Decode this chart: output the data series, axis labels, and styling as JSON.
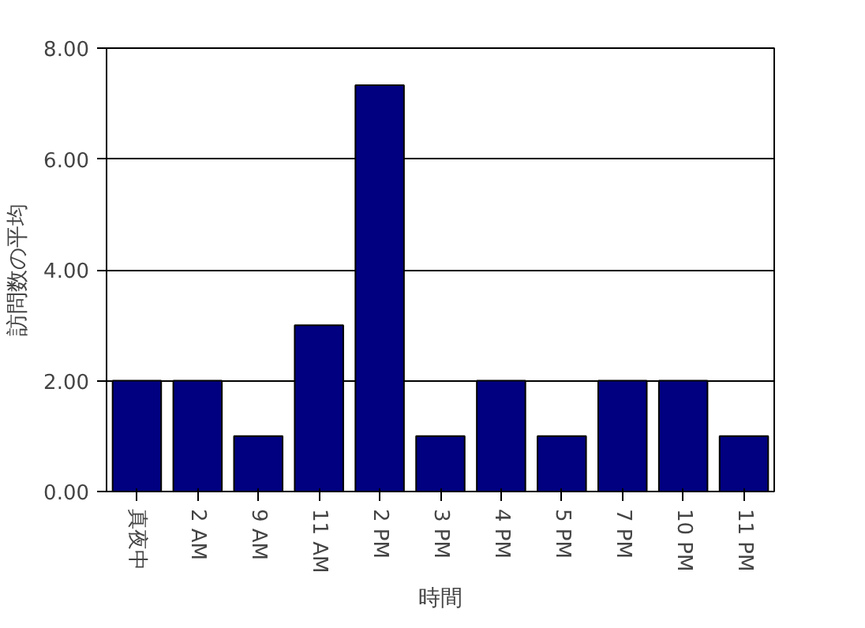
{
  "chart_data": {
    "type": "bar",
    "xlabel": "時間",
    "ylabel": "訪問数の平均",
    "categories": [
      "真夜中",
      "2 AM",
      "9 AM",
      "11 AM",
      "2 PM",
      "3 PM",
      "4 PM",
      "5 PM",
      "7 PM",
      "10 PM",
      "11 PM"
    ],
    "values": [
      2,
      2,
      1,
      3,
      7.33,
      1,
      2,
      1,
      2,
      2,
      1
    ],
    "color": "#000080",
    "ylim": [
      0,
      8
    ],
    "yticks": [
      {
        "value": 0,
        "label": "0.00"
      },
      {
        "value": 2,
        "label": "2.00"
      },
      {
        "value": 4,
        "label": "4.00"
      },
      {
        "value": 6,
        "label": "6.00"
      },
      {
        "value": 8,
        "label": "8.00"
      }
    ],
    "grid": "y"
  }
}
